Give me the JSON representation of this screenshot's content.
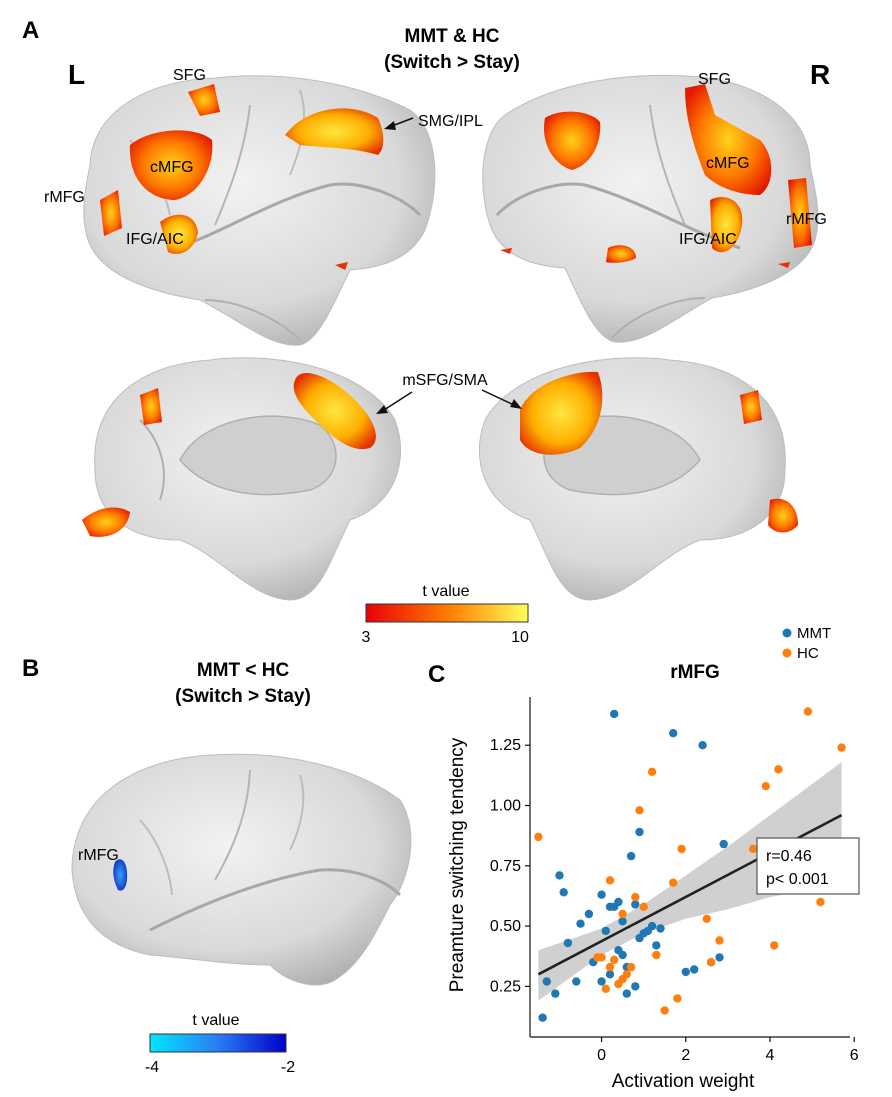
{
  "panels": {
    "a": {
      "letter": "A",
      "title_line1": "MMT & HC",
      "title_line2": "(Switch > Stay)",
      "left_hemi": "L",
      "right_hemi": "R",
      "regions": {
        "sfg_l": "SFG",
        "sfg_r": "SFG",
        "smg_ipl": "SMG/IPL",
        "cmfg_l": "cMFG",
        "cmfg_r": "cMFG",
        "rmfg_l": "rMFG",
        "rmfg_r": "rMFG",
        "ifg_l": "IFG/AIC",
        "ifg_r": "IFG/AIC",
        "msfg": "mSFG/SMA"
      },
      "colorbar": {
        "label": "t value",
        "min": "3",
        "max": "10",
        "color_low": "#e8000b",
        "color_mid": "#ff7a00",
        "color_high": "#ffff5a"
      }
    },
    "b": {
      "letter": "B",
      "title_line1": "MMT < HC",
      "title_line2": "(Switch > Stay)",
      "region": "rMFG",
      "colorbar": {
        "label": "t value",
        "min": "-4",
        "max": "-2",
        "color_low": "#00e5ff",
        "color_high": "#0000c8"
      }
    },
    "c": {
      "letter": "C",
      "stats_line1": "r=0.46",
      "stats_line2": "p< 0.001"
    }
  },
  "chart_data": {
    "type": "scatter",
    "title": "rMFG",
    "xlabel": "Activation weight",
    "ylabel": "Preamture switching tendency",
    "xlim": [
      -1.7,
      5.9
    ],
    "ylim": [
      0.04,
      1.45
    ],
    "xticks": [
      "0",
      "2",
      "4",
      "6"
    ],
    "xtick_values": [
      0,
      2,
      4,
      6
    ],
    "yticks": [
      "0.25",
      "0.50",
      "0.75",
      "1.00",
      "1.25"
    ],
    "ytick_values": [
      0.25,
      0.5,
      0.75,
      1.0,
      1.25
    ],
    "legend_position": "top-right",
    "colors": {
      "MMT": "#1f77b4",
      "HC": "#ff7f0e",
      "fit": "#222222",
      "band": "#c8c8c8"
    },
    "series": [
      {
        "name": "MMT",
        "x": [
          0.3,
          1.7,
          2.4,
          2.9,
          -1.0,
          -0.9,
          -1.3,
          -0.5,
          -0.3,
          0.0,
          0.1,
          0.2,
          0.4,
          0.5,
          0.7,
          0.8,
          0.9,
          1.0,
          1.1,
          1.2,
          1.3,
          0.6,
          0.8,
          -0.2,
          0.0,
          0.2,
          0.4,
          0.6,
          -1.1,
          -0.8,
          0.3,
          0.5,
          0.9,
          2.0,
          2.2,
          2.6,
          2.8,
          -1.4,
          -0.6,
          1.4
        ],
        "y": [
          1.38,
          1.3,
          1.25,
          0.84,
          0.71,
          0.64,
          0.27,
          0.51,
          0.55,
          0.63,
          0.48,
          0.58,
          0.6,
          0.52,
          0.79,
          0.59,
          0.89,
          0.47,
          0.48,
          0.5,
          0.42,
          0.33,
          0.25,
          0.35,
          0.27,
          0.3,
          0.4,
          0.22,
          0.22,
          0.43,
          0.58,
          0.38,
          0.45,
          0.31,
          0.32,
          0.35,
          0.37,
          0.12,
          0.27,
          0.49
        ]
      },
      {
        "name": "HC",
        "x": [
          -1.5,
          4.9,
          5.7,
          4.2,
          1.2,
          0.9,
          3.9,
          1.9,
          3.6,
          1.7,
          5.4,
          5.2,
          4.1,
          0.8,
          1.0,
          0.2,
          0.5,
          0.0,
          0.1,
          0.3,
          0.6,
          0.4,
          0.7,
          1.3,
          2.5,
          2.8,
          2.6,
          1.5,
          1.8,
          0.2,
          -0.1,
          0.5
        ],
        "y": [
          0.87,
          1.39,
          1.24,
          1.15,
          1.14,
          0.98,
          1.08,
          0.82,
          0.82,
          0.68,
          0.72,
          0.6,
          0.42,
          0.62,
          0.58,
          0.69,
          0.55,
          0.37,
          0.24,
          0.36,
          0.3,
          0.26,
          0.33,
          0.38,
          0.53,
          0.44,
          0.35,
          0.15,
          0.2,
          0.33,
          0.37,
          0.28
        ]
      }
    ],
    "fit": {
      "x": [
        -1.5,
        5.7
      ],
      "y": [
        0.3,
        0.96
      ]
    },
    "ci_band": {
      "x": [
        -1.5,
        0.0,
        1.0,
        2.0,
        3.0,
        4.0,
        5.7
      ],
      "lower": [
        0.19,
        0.38,
        0.47,
        0.53,
        0.57,
        0.62,
        0.68
      ],
      "upper": [
        0.4,
        0.49,
        0.59,
        0.71,
        0.83,
        0.96,
        1.18
      ]
    }
  }
}
